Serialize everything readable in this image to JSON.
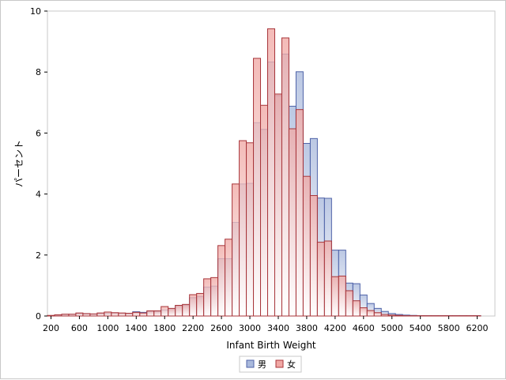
{
  "chart_data": {
    "type": "bar",
    "subtype": "overlaid-histogram",
    "title": "",
    "xlabel": "Infant Birth Weight",
    "ylabel": "パーセント",
    "xlim": [
      150,
      6450
    ],
    "ylim": [
      0,
      10
    ],
    "bin_width": 100,
    "x_ticks": [
      200,
      600,
      1000,
      1400,
      1800,
      2200,
      2600,
      3000,
      3400,
      3800,
      4200,
      4600,
      5000,
      5400,
      5800,
      6200
    ],
    "y_ticks": [
      0,
      2,
      4,
      6,
      8,
      10
    ],
    "grid": false,
    "legend": {
      "placement": "bottom-center",
      "entries": [
        "男",
        "女"
      ]
    },
    "series": [
      {
        "name": "男",
        "color_fill": "#a9b9dc",
        "color_line": "#4f63a8",
        "bin_starts": [
          200,
          300,
          400,
          500,
          600,
          700,
          800,
          900,
          1000,
          1100,
          1200,
          1300,
          1400,
          1500,
          1600,
          1700,
          1800,
          1900,
          2000,
          2100,
          2200,
          2300,
          2400,
          2500,
          2600,
          2700,
          2800,
          2900,
          3000,
          3100,
          3200,
          3300,
          3400,
          3500,
          3600,
          3700,
          3800,
          3900,
          4000,
          4100,
          4200,
          4300,
          4400,
          4500,
          4600,
          4700,
          4800,
          4900,
          5000,
          5100,
          5200,
          5300,
          5400,
          5500,
          5600,
          5700,
          5800,
          5900,
          6000,
          6100,
          6200
        ],
        "values": [
          0.01,
          0.03,
          0.05,
          0.05,
          0.08,
          0.07,
          0.06,
          0.08,
          0.08,
          0.1,
          0.09,
          0.08,
          0.14,
          0.12,
          0.15,
          0.15,
          0.2,
          0.24,
          0.34,
          0.36,
          0.6,
          0.64,
          0.95,
          0.98,
          1.88,
          1.88,
          3.07,
          4.33,
          4.35,
          6.34,
          6.12,
          8.33,
          7.23,
          8.59,
          6.88,
          8.01,
          5.66,
          5.82,
          3.87,
          3.86,
          2.16,
          2.16,
          1.08,
          1.06,
          0.69,
          0.41,
          0.25,
          0.15,
          0.08,
          0.05,
          0.03,
          0.02,
          0.01,
          0.01,
          0.01,
          0.01,
          0.01,
          0.01,
          0.01,
          0.01,
          0.01
        ]
      },
      {
        "name": "女",
        "color_fill": "#f0a8a4",
        "color_line": "#a8353a",
        "bin_starts": [
          200,
          300,
          400,
          500,
          600,
          700,
          800,
          900,
          1000,
          1100,
          1200,
          1300,
          1400,
          1500,
          1600,
          1700,
          1800,
          1900,
          2000,
          2100,
          2200,
          2300,
          2400,
          2500,
          2600,
          2700,
          2800,
          2900,
          3000,
          3100,
          3200,
          3300,
          3400,
          3500,
          3600,
          3700,
          3800,
          3900,
          4000,
          4100,
          4200,
          4300,
          4400,
          4500,
          4600,
          4700,
          4800,
          4900,
          5000,
          5100,
          5200,
          5300,
          5400,
          5500,
          5600,
          5700,
          5800,
          5900,
          6000,
          6100,
          6200
        ],
        "values": [
          0.02,
          0.04,
          0.06,
          0.06,
          0.1,
          0.08,
          0.07,
          0.1,
          0.13,
          0.11,
          0.1,
          0.09,
          0.12,
          0.1,
          0.17,
          0.17,
          0.31,
          0.25,
          0.35,
          0.38,
          0.7,
          0.74,
          1.22,
          1.26,
          2.31,
          2.52,
          4.33,
          5.75,
          5.68,
          8.45,
          6.91,
          9.42,
          7.28,
          9.12,
          6.14,
          6.77,
          4.58,
          3.95,
          2.42,
          2.46,
          1.29,
          1.31,
          0.83,
          0.5,
          0.27,
          0.18,
          0.11,
          0.05,
          0.03,
          0.02,
          0.01,
          0.01,
          0.01,
          0.01,
          0.01,
          0.01,
          0.01,
          0.01,
          0.01,
          0.01,
          0.01
        ]
      }
    ]
  }
}
